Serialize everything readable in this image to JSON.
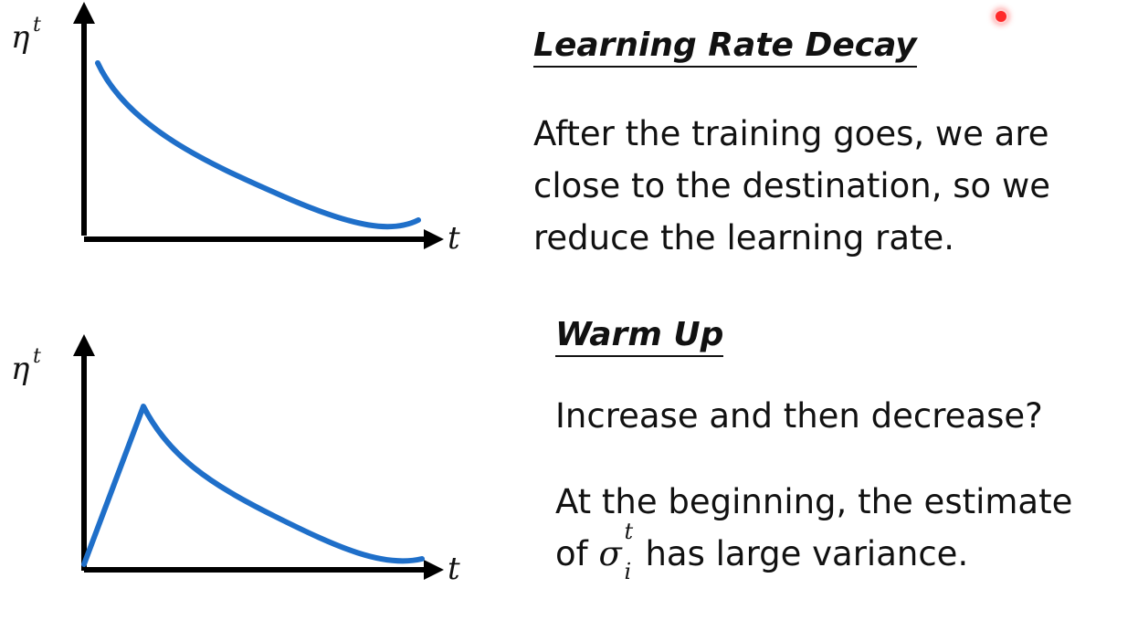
{
  "graphs": {
    "decay": {
      "y_label": "η",
      "y_sup": "t",
      "x_label": "t"
    },
    "warmup": {
      "y_label": "η",
      "y_sup": "t",
      "x_label": "t"
    }
  },
  "sections": {
    "decay": {
      "title": "Learning Rate Decay",
      "lines": [
        "After the training goes, we are",
        "close to the destination, so we",
        "reduce the learning rate."
      ]
    },
    "warmup": {
      "title": "Warm Up",
      "question": "Increase and then decrease?",
      "line1": "At the beginning, the estimate",
      "line2_pre": "of ",
      "math_symbol": "σ",
      "math_sub": "i",
      "math_sup": "t",
      "line2_post": " has large variance."
    }
  },
  "colors": {
    "curve": "#1f6fc9",
    "axis": "#000000",
    "pointer": "#ff2a2a"
  }
}
